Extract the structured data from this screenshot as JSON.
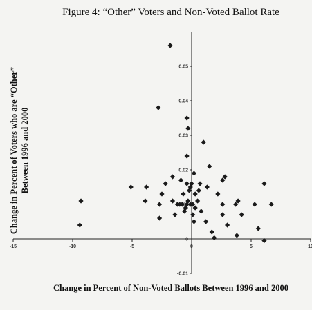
{
  "chart_data": {
    "type": "scatter",
    "title": "Figure 4: “Other” Voters and Non-Voted Ballot Rate",
    "xlabel": "Change in Percent of Non-Voted Ballots Between 1996 and 2000",
    "ylabel_lines": [
      "Change in Percent of Voters who are “Other”",
      "Between 1996 and 2000"
    ],
    "xlim": [
      -15,
      10
    ],
    "ylim": [
      -0.01,
      0.06
    ],
    "x_ticks": [
      -15,
      -10,
      -5,
      0,
      5,
      10
    ],
    "x_tick_labels": [
      "-15",
      "-10",
      "-5",
      "0",
      "5",
      "10"
    ],
    "y_ticks": [
      -0.01,
      0,
      0.01,
      0.02,
      0.03,
      0.04,
      0.05
    ],
    "y_tick_labels": [
      "-0.01",
      "0",
      "0.01",
      "0.02",
      "0.03",
      "0.04",
      "0.05"
    ],
    "grid": false,
    "legend": "none",
    "marker": "diamond",
    "marker_color": "#1a1a1a",
    "points": [
      [
        -1.8,
        0.056
      ],
      [
        -2.8,
        0.038
      ],
      [
        -0.4,
        0.035
      ],
      [
        -0.3,
        0.032
      ],
      [
        1.0,
        0.028
      ],
      [
        -0.4,
        0.024
      ],
      [
        1.5,
        0.021
      ],
      [
        0.2,
        0.019
      ],
      [
        -1.6,
        0.018
      ],
      [
        2.8,
        0.018
      ],
      [
        2.6,
        0.017
      ],
      [
        -0.9,
        0.017
      ],
      [
        -0.4,
        0.016
      ],
      [
        0.0,
        0.016
      ],
      [
        -2.2,
        0.016
      ],
      [
        -0.1,
        0.015
      ],
      [
        0.7,
        0.016
      ],
      [
        -3.8,
        0.015
      ],
      [
        -5.1,
        0.015
      ],
      [
        1.3,
        0.015
      ],
      [
        0.6,
        0.014
      ],
      [
        -0.2,
        0.014
      ],
      [
        0.3,
        0.013
      ],
      [
        -2.5,
        0.013
      ],
      [
        -0.7,
        0.013
      ],
      [
        2.2,
        0.013
      ],
      [
        6.1,
        0.016
      ],
      [
        -9.3,
        0.011
      ],
      [
        -3.9,
        0.011
      ],
      [
        -1.6,
        0.011
      ],
      [
        -0.3,
        0.011
      ],
      [
        0.5,
        0.011
      ],
      [
        -0.1,
        0.01
      ],
      [
        3.9,
        0.011
      ],
      [
        -2.7,
        0.01
      ],
      [
        -1.2,
        0.01
      ],
      [
        -1.0,
        0.01
      ],
      [
        -0.8,
        0.01
      ],
      [
        -0.4,
        0.01
      ],
      [
        0.1,
        0.01
      ],
      [
        2.6,
        0.01
      ],
      [
        3.7,
        0.01
      ],
      [
        5.3,
        0.01
      ],
      [
        6.7,
        0.01
      ],
      [
        -0.5,
        0.009
      ],
      [
        0.3,
        0.009
      ],
      [
        -0.6,
        0.008
      ],
      [
        0.8,
        0.008
      ],
      [
        -1.4,
        0.007
      ],
      [
        0.1,
        0.007
      ],
      [
        2.6,
        0.007
      ],
      [
        4.2,
        0.007
      ],
      [
        -2.7,
        0.006
      ],
      [
        0.2,
        0.005
      ],
      [
        1.2,
        0.005
      ],
      [
        3.0,
        0.004
      ],
      [
        5.6,
        0.003
      ],
      [
        1.7,
        0.002
      ],
      [
        -9.4,
        0.004
      ],
      [
        3.8,
        0.001
      ],
      [
        1.9,
        0.0003
      ],
      [
        6.1,
        -0.0005
      ]
    ]
  }
}
